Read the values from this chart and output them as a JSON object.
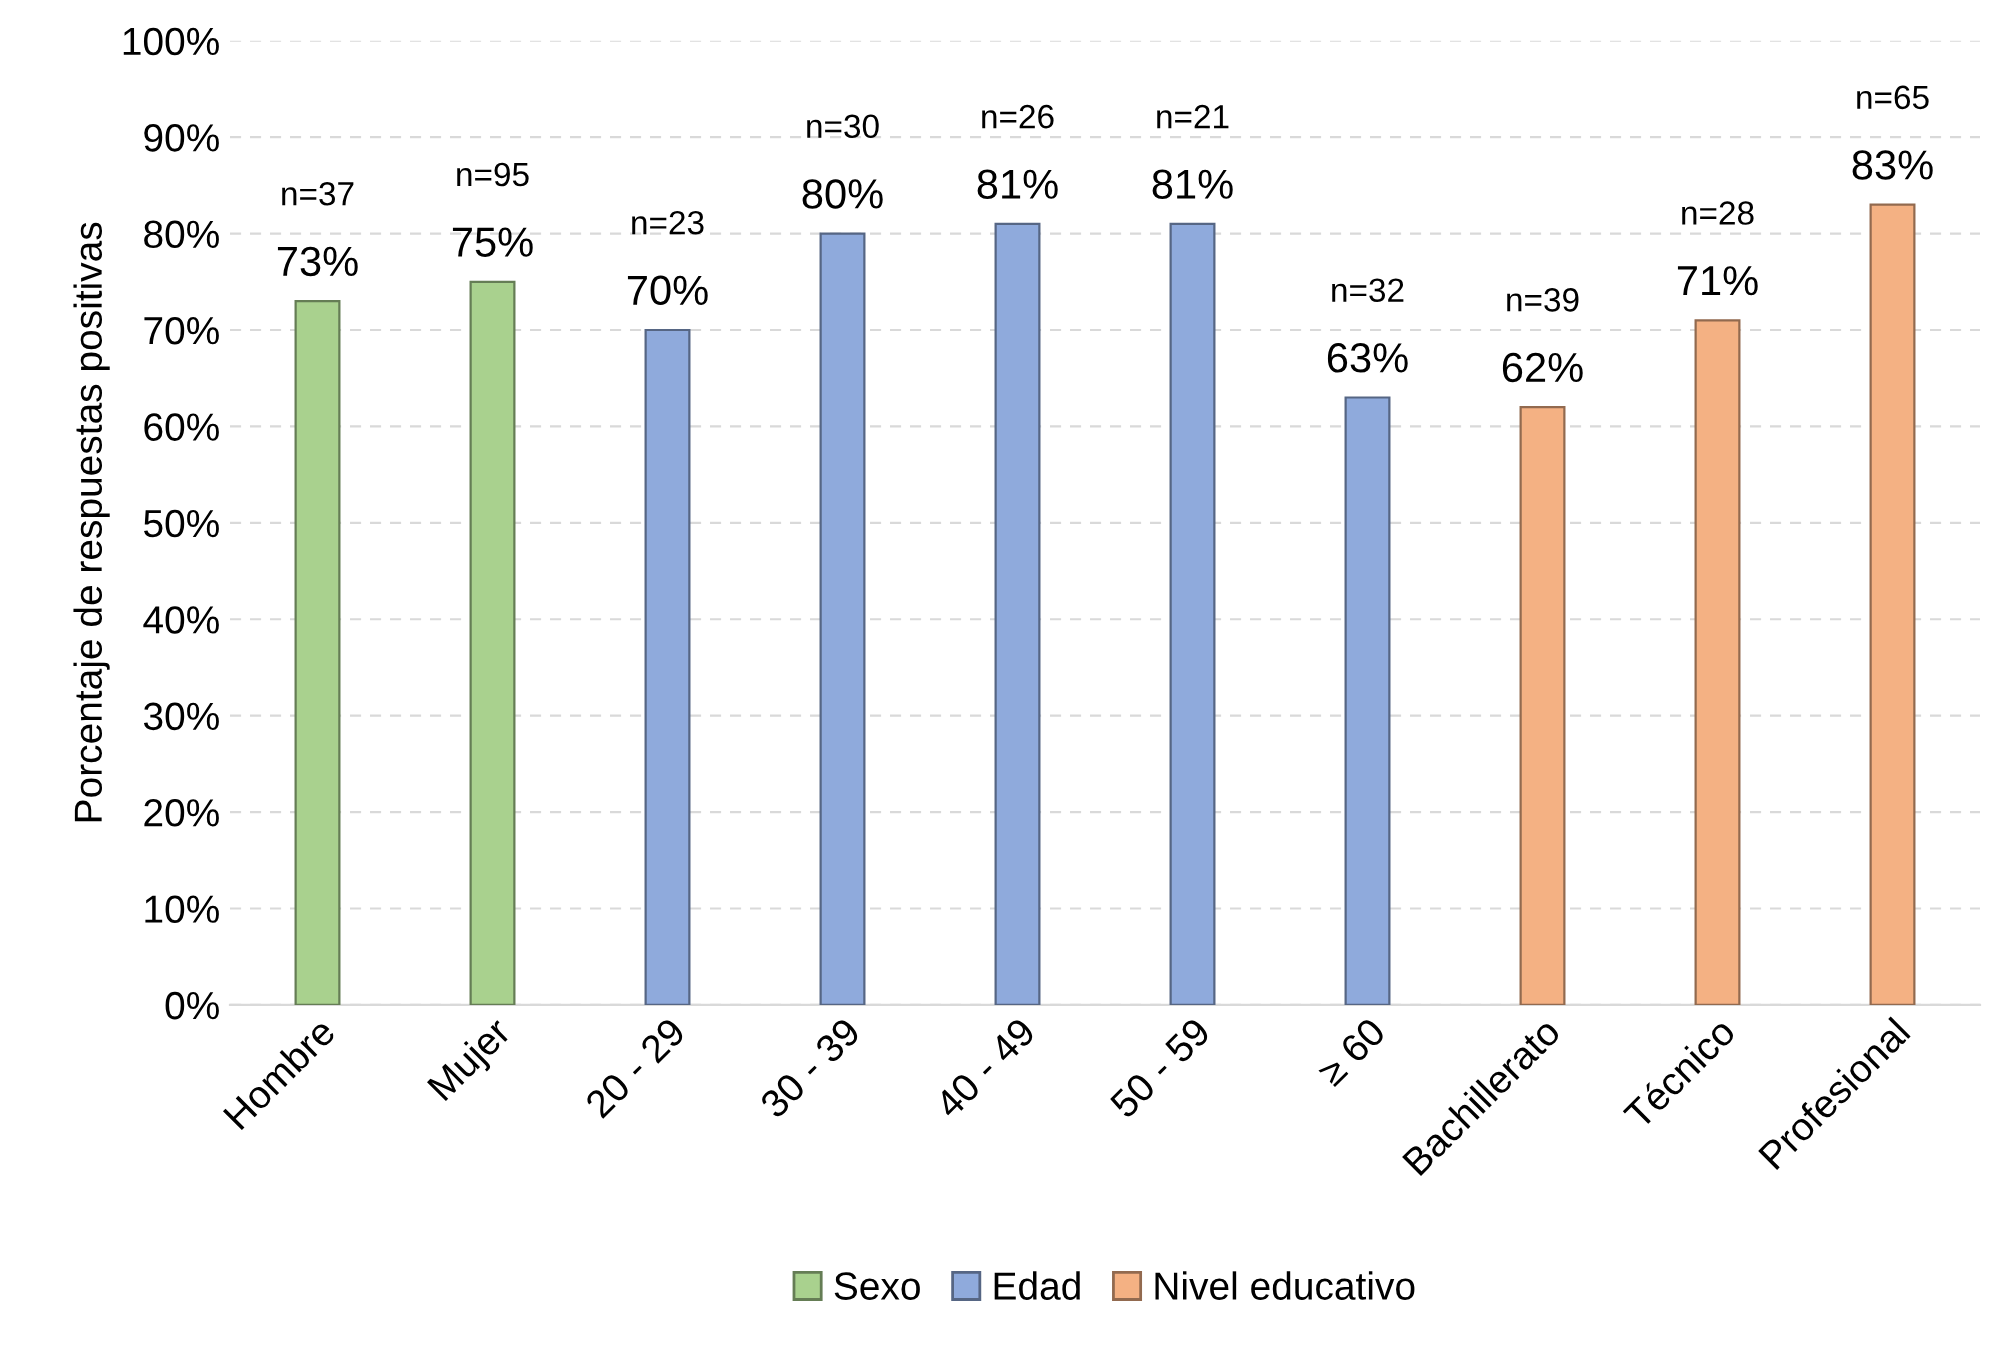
{
  "chart_data": {
    "type": "bar",
    "ylabel": "Porcentaje de respuestas positivas",
    "categories": [
      "Hombre",
      "Mujer",
      "20 - 29",
      "30 - 39",
      "40 - 49",
      "50 - 59",
      "≥ 60",
      "Bachillerato",
      "Técnico",
      "Profesional"
    ],
    "series": [
      {
        "name": "Sexo",
        "color": "#a9d18e",
        "values": [
          73,
          75,
          null,
          null,
          null,
          null,
          null,
          null,
          null,
          null
        ],
        "value_labels": [
          "73%",
          "75%",
          null,
          null,
          null,
          null,
          null,
          null,
          null,
          null
        ]
      },
      {
        "name": "Edad",
        "color": "#8faadc",
        "values": [
          null,
          null,
          70,
          80,
          81,
          81,
          63,
          null,
          null,
          null
        ],
        "value_labels": [
          null,
          null,
          "70%",
          "80%",
          "81%",
          "81%",
          "63%",
          null,
          null,
          null
        ]
      },
      {
        "name": "Nivel educativo",
        "color": "#f4b183",
        "values": [
          null,
          null,
          null,
          null,
          null,
          null,
          null,
          62,
          71,
          83
        ],
        "value_labels": [
          null,
          null,
          null,
          null,
          null,
          null,
          null,
          "62%",
          "71%",
          "83%"
        ]
      }
    ],
    "ylim": [
      0,
      100
    ],
    "yticks": [
      {
        "value": 0,
        "label": "0%"
      },
      {
        "value": 10,
        "label": "10%"
      },
      {
        "value": 20,
        "label": "20%"
      },
      {
        "value": 30,
        "label": "30%"
      },
      {
        "value": 40,
        "label": "40%"
      },
      {
        "value": 50,
        "label": "50%"
      },
      {
        "value": 60,
        "label": "60%"
      },
      {
        "value": 70,
        "label": "70%"
      },
      {
        "value": 80,
        "label": "80%"
      },
      {
        "value": 90,
        "label": "90%"
      },
      {
        "value": 100,
        "label": "100%"
      }
    ],
    "grid": "y",
    "legend": "bottom",
    "annotations": [
      "n=37",
      "n=95",
      "n=23",
      "n=30",
      "n=26",
      "n=21",
      "n=32",
      "n=39",
      "n=28",
      "n=65"
    ]
  }
}
